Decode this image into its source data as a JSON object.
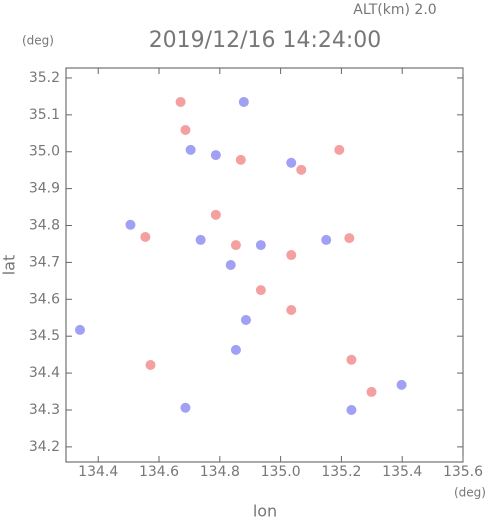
{
  "chart_data": {
    "type": "scatter",
    "title": "2019/12/16 14:24:00",
    "subtitle": "ALT(km)  2.0",
    "x_label": "lon",
    "x_unit": "(deg)",
    "y_label": "lat",
    "y_unit": "(deg)",
    "xlim": [
      134.294,
      135.6
    ],
    "ylim": [
      34.159,
      35.227
    ],
    "xticks": [
      134.4,
      134.6,
      134.8,
      {
        "value": 135.0,
        "label": "135.0"
      },
      135.2,
      135.4,
      135.6
    ],
    "yticks": [
      34.2,
      34.3,
      34.4,
      34.5,
      34.6,
      34.7,
      34.8,
      34.9,
      {
        "value": 35.0,
        "label": "35.0"
      },
      35.1,
      35.2
    ],
    "series": [
      {
        "color": "#f08080",
        "x": [
          134.671,
          134.687,
          134.869,
          135.068,
          135.193,
          134.787,
          134.555,
          134.853,
          135.035,
          135.226,
          134.572,
          135.035,
          135.233,
          135.299,
          134.935
        ],
        "y": [
          35.135,
          35.059,
          34.978,
          34.951,
          35.005,
          34.829,
          34.769,
          34.747,
          34.72,
          34.766,
          34.422,
          34.571,
          34.436,
          34.349,
          34.625
        ]
      },
      {
        "color": "#8080f0",
        "x": [
          134.879,
          134.704,
          134.787,
          135.035,
          134.506,
          134.737,
          134.935,
          135.15,
          134.34,
          134.687,
          134.886,
          134.853,
          135.233,
          135.398,
          134.836
        ],
        "y": [
          35.135,
          35.005,
          34.991,
          34.97,
          34.802,
          34.761,
          34.747,
          34.761,
          34.517,
          34.306,
          34.544,
          34.463,
          34.3,
          34.368,
          34.693
        ]
      }
    ]
  }
}
